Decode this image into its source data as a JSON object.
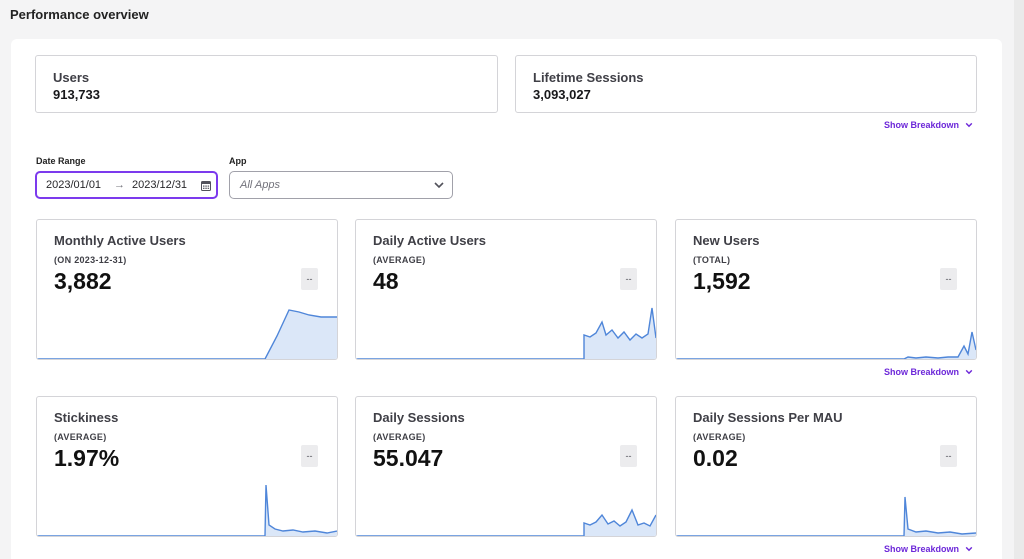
{
  "header": {
    "title": "Performance overview"
  },
  "summary": {
    "users": {
      "label": "Users",
      "value": "913,733"
    },
    "sessions": {
      "label": "Lifetime Sessions",
      "value": "3,093,027"
    }
  },
  "breakdown_label": "Show Breakdown",
  "filters": {
    "date_range": {
      "label": "Date Range",
      "start": "2023/01/01",
      "end": "2023/12/31",
      "arrow": "→"
    },
    "app": {
      "label": "App",
      "placeholder": "All Apps"
    }
  },
  "colors": {
    "accent": "#7c3aed",
    "line": "#4f86d9",
    "fill": "#dbe7f8"
  },
  "icons": {
    "calendar": "calendar-icon",
    "chevron": "chevron-down-icon"
  },
  "metrics": [
    {
      "title": "Monthly Active Users",
      "subtitle": "(ON 2023-12-31)",
      "value": "3,882",
      "delta": "--"
    },
    {
      "title": "Daily Active Users",
      "subtitle": "(AVERAGE)",
      "value": "48",
      "delta": "--"
    },
    {
      "title": "New Users",
      "subtitle": "(TOTAL)",
      "value": "1,592",
      "delta": "--"
    },
    {
      "title": "Stickiness",
      "subtitle": "(AVERAGE)",
      "value": "1.97%",
      "delta": "--"
    },
    {
      "title": "Daily Sessions",
      "subtitle": "(AVERAGE)",
      "value": "55.047",
      "delta": "--"
    },
    {
      "title": "Daily Sessions Per MAU",
      "subtitle": "(AVERAGE)",
      "value": "0.02",
      "delta": "--"
    }
  ]
}
